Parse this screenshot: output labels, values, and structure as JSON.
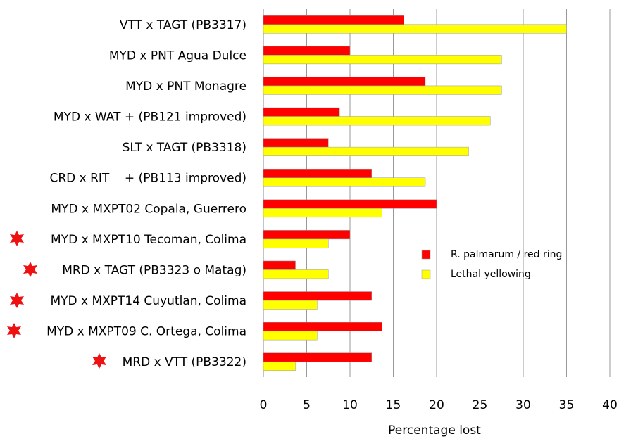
{
  "chart_data": {
    "type": "hbar",
    "x_label": "Percentage lost",
    "categories": [
      "VTT x TAGT (PB3317)",
      "MYD x PNT Agua Dulce",
      "MYD x PNT Monagre",
      "MYD x WAT + (PB121 improved)",
      "SLT x TAGT (PB3318)",
      "CRD x RIT    + (PB113 improved)",
      "MYD x MXPT02 Copala, Guerrero",
      "MYD x MXPT10 Tecoman, Colima",
      "MRD x TAGT (PB3323 o Matag)",
      "MYD x MXPT14 Cuyutlan, Colima",
      "MYD x MXPT09 C. Ortega, Colima",
      "MRD x VTT (PB3322)"
    ],
    "series": [
      {
        "name": "R. palmarum / red ring",
        "color": "#ff0000",
        "values": [
          16.2,
          10,
          18.7,
          8.8,
          7.5,
          12.5,
          20,
          10,
          3.7,
          12.5,
          13.7,
          12.5
        ]
      },
      {
        "name": "Lethal yellowing",
        "color": "#ffff00",
        "values": [
          35,
          27.5,
          27.5,
          26.2,
          23.7,
          18.7,
          13.7,
          7.5,
          7.5,
          6.2,
          6.2,
          3.7
        ]
      }
    ],
    "xlim": [
      0,
      40
    ],
    "xticks": [
      0,
      5,
      10,
      15,
      20,
      25,
      30,
      35,
      40
    ],
    "grid": true
  }
}
